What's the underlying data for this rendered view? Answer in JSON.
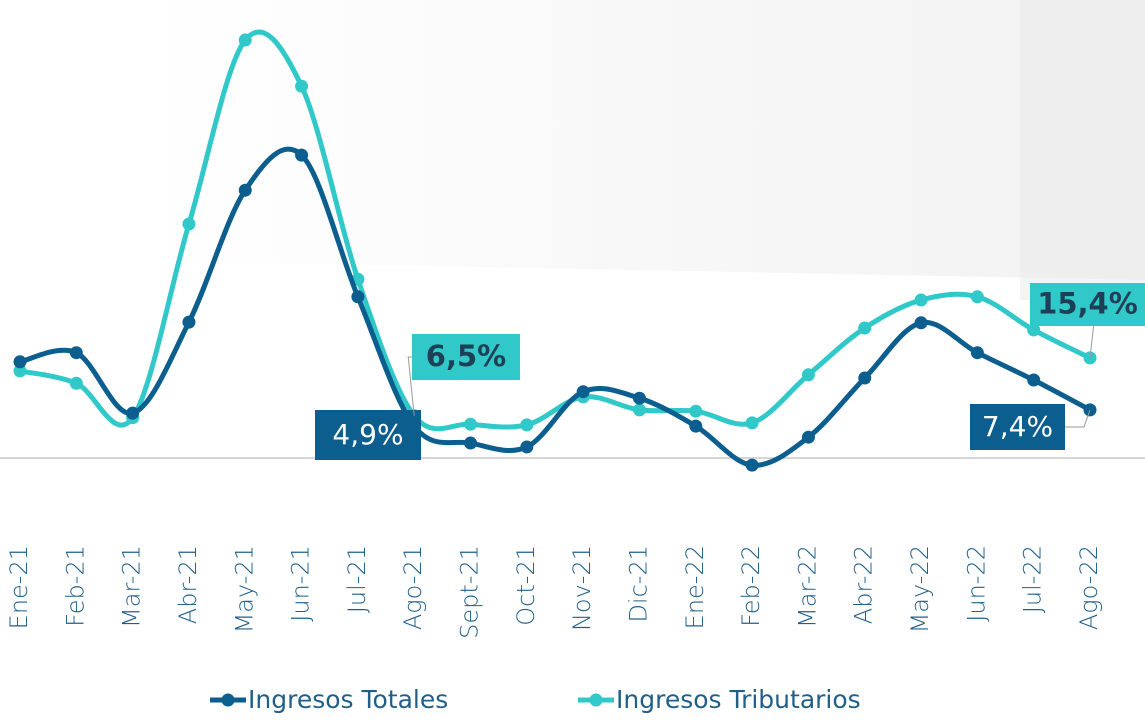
{
  "chart_data": {
    "type": "line",
    "categories": [
      "Ene-21",
      "Feb-21",
      "Mar-21",
      "Abr-21",
      "May-21",
      "Jun-21",
      "Jul-21",
      "Ago-21",
      "Sept-21",
      "Oct-21",
      "Nov-21",
      "Dic-21",
      "Ene-22",
      "Feb-22",
      "Mar-22",
      "Abr-22",
      "May-22",
      "Jun-22",
      "Jul-22",
      "Ago-22"
    ],
    "series": [
      {
        "name": "Ingresos Totales",
        "color": "#0b5e8e",
        "values": [
          14.8,
          16.2,
          6.9,
          20.9,
          41.2,
          46.6,
          24.8,
          4.9,
          2.3,
          1.7,
          10.2,
          9.2,
          4.9,
          -1.1,
          3.2,
          12.3,
          20.8,
          16.2,
          12.0,
          7.4
        ],
        "value_labels": [
          null,
          null,
          null,
          null,
          null,
          null,
          null,
          "4,9%",
          null,
          null,
          null,
          null,
          null,
          null,
          null,
          null,
          null,
          null,
          null,
          "7,4%"
        ]
      },
      {
        "name": "Ingresos Tributarios",
        "color": "#30c8c8",
        "values": [
          13.4,
          11.5,
          6.2,
          36.0,
          64.3,
          57.2,
          27.5,
          6.5,
          5.2,
          5.1,
          9.4,
          7.4,
          7.2,
          5.4,
          12.8,
          20.0,
          24.3,
          24.8,
          19.7,
          15.4
        ],
        "value_labels": [
          null,
          null,
          null,
          null,
          null,
          null,
          null,
          "6,5%",
          null,
          null,
          null,
          null,
          null,
          null,
          null,
          null,
          null,
          null,
          null,
          "15,4%"
        ]
      }
    ]
  }
}
